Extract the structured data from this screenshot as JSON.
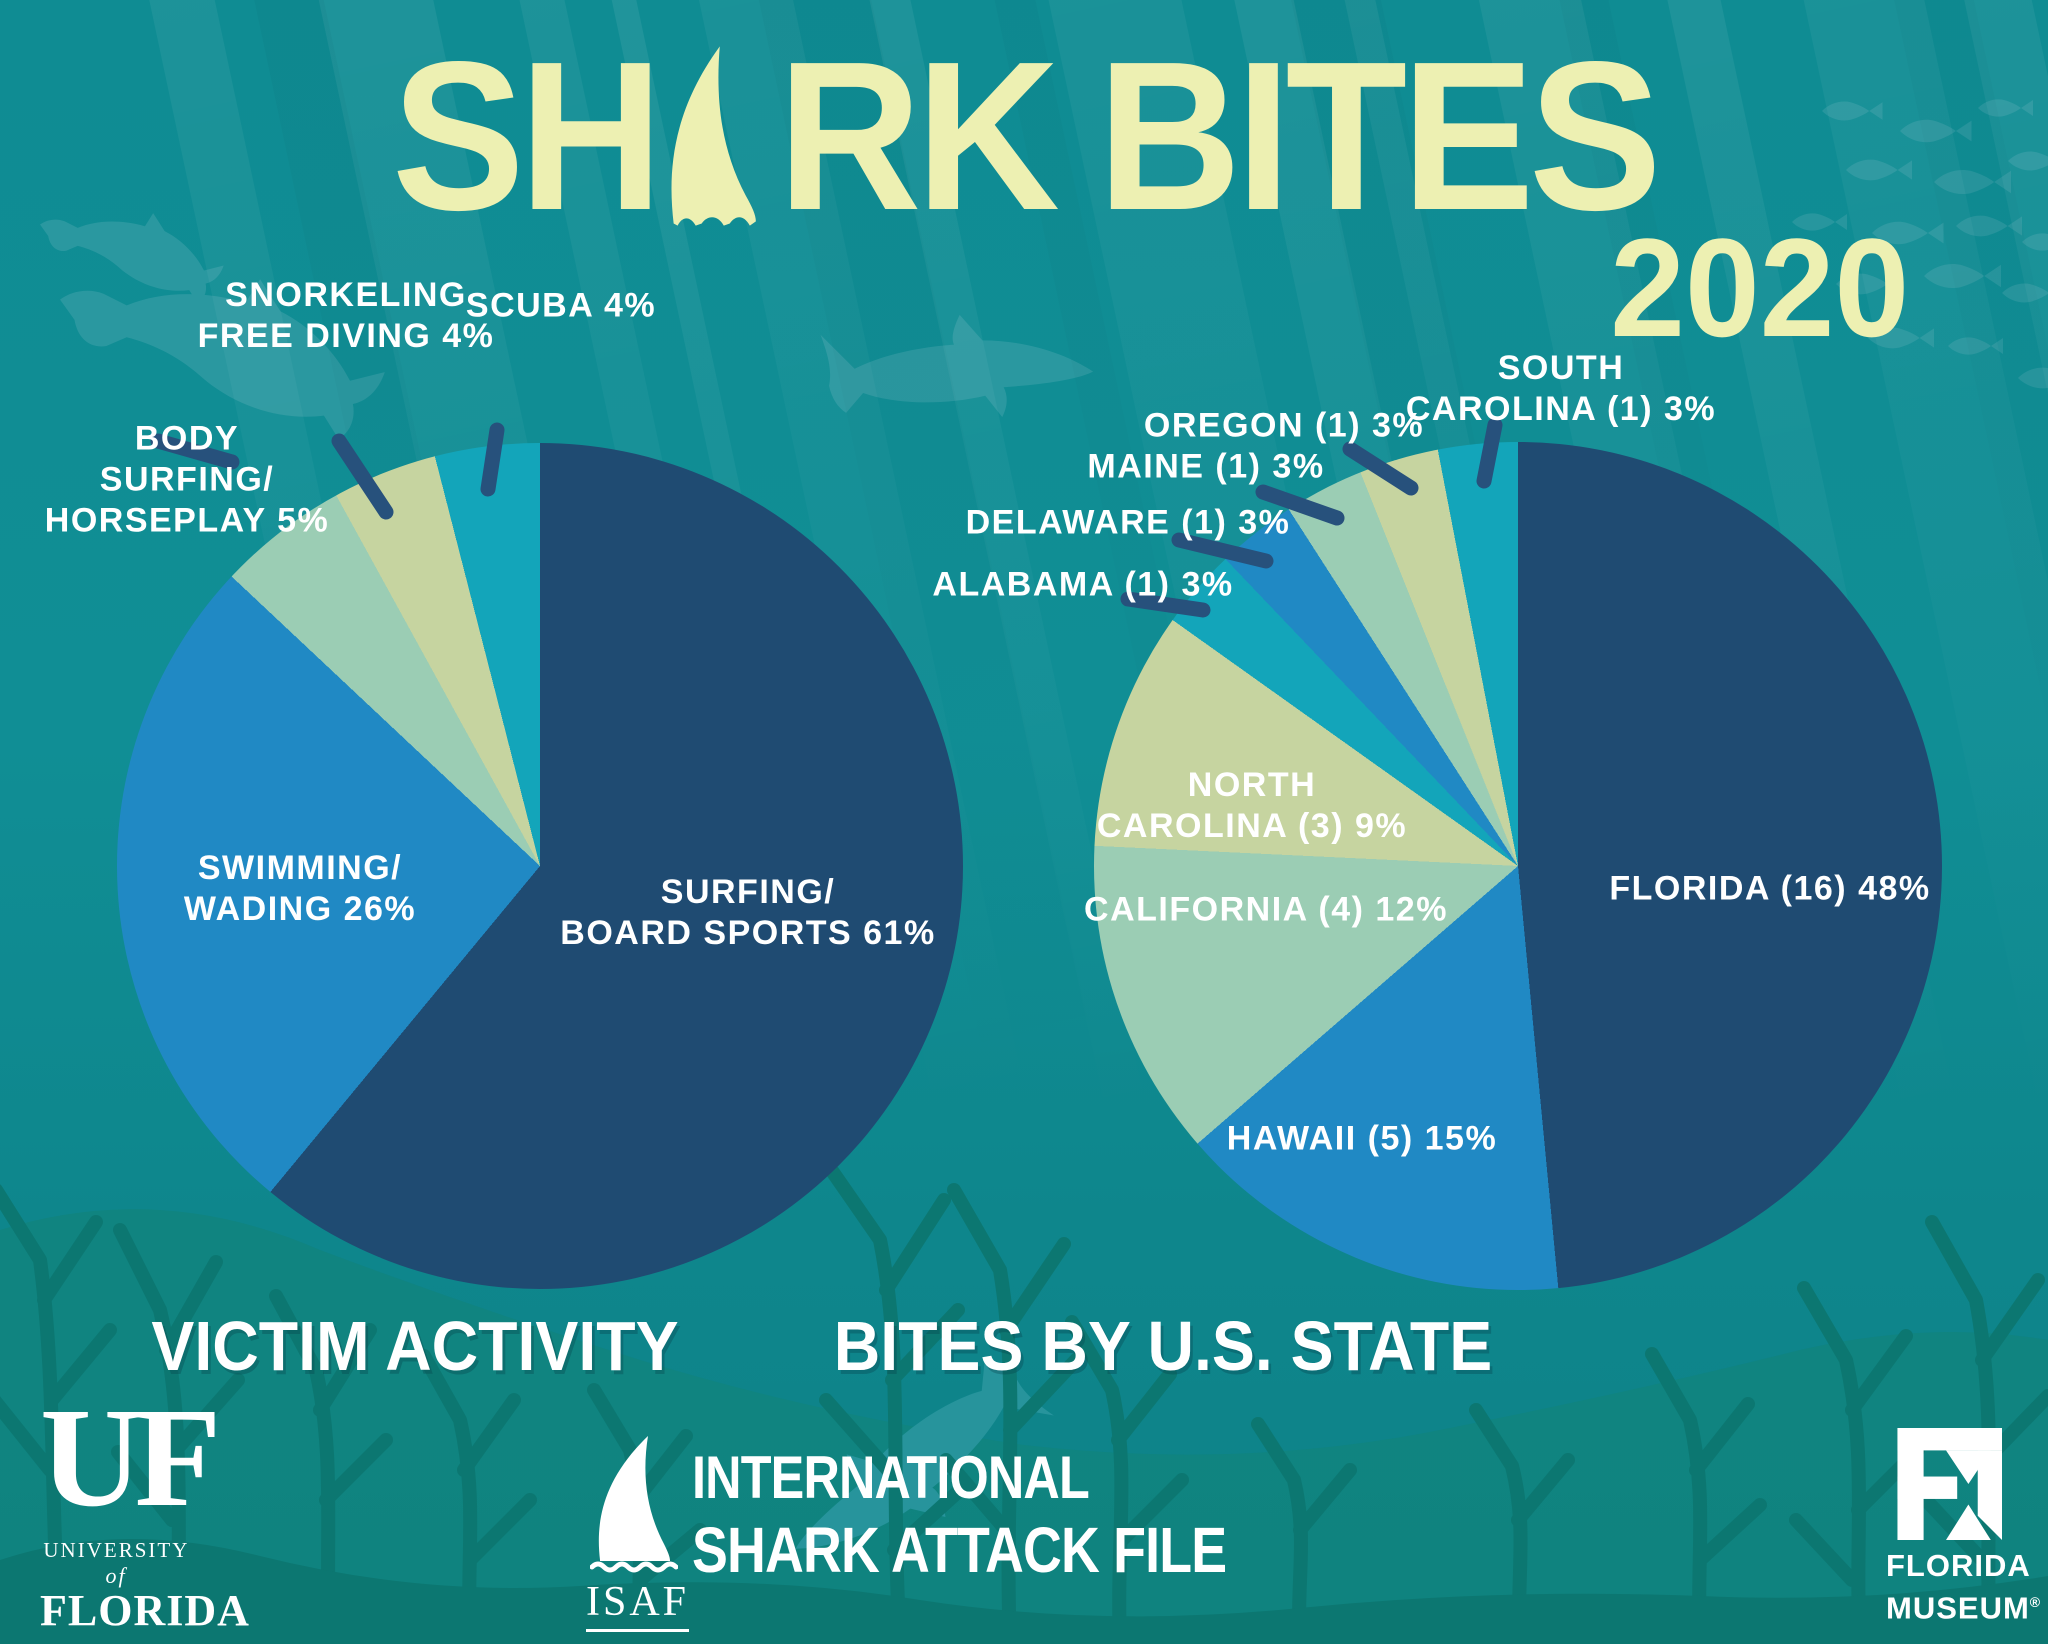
{
  "title": {
    "word1_prefix": "SH",
    "word1_suffix": "RK",
    "word2": "BITES",
    "year": "2020"
  },
  "colors": {
    "navy": "#1F4B72",
    "blue": "#2089C4",
    "mint": "#9BCDB4",
    "khaki": "#C6D4A0",
    "teal": "#13A5BA",
    "cream": "#EDF0B2",
    "leader_line": "#27517C",
    "background": "#0F8C93",
    "label_text": "#FFFFFF"
  },
  "chart_data": [
    {
      "type": "pie",
      "title": "VICTIM ACTIVITY",
      "legend_position": "on-slice",
      "slices": [
        {
          "name": "SURFING/BOARD SPORTS",
          "pct": 61,
          "color": "navy",
          "label_lines": [
            "SURFING/",
            "BOARD SPORTS 61%"
          ]
        },
        {
          "name": "SWIMMING/WADING",
          "pct": 26,
          "color": "blue",
          "label_lines": [
            "SWIMMING/",
            "WADING 26%"
          ]
        },
        {
          "name": "BODY SURFING/HORSEPLAY",
          "pct": 5,
          "color": "mint",
          "label_lines": [
            "BODY",
            "SURFING/",
            "HORSEPLAY 5%"
          ]
        },
        {
          "name": "SNORKELING/FREE DIVING",
          "pct": 4,
          "color": "khaki",
          "label_lines": [
            "SNORKELING",
            "FREE DIVING 4%"
          ]
        },
        {
          "name": "SCUBA",
          "pct": 4,
          "color": "teal",
          "label_lines": [
            "SCUBA 4%"
          ]
        }
      ]
    },
    {
      "type": "pie",
      "title": "BITES BY U.S. STATE",
      "legend_position": "on-slice",
      "slices": [
        {
          "name": "FLORIDA",
          "count": 16,
          "pct": 48,
          "color": "navy",
          "label_lines": [
            "FLORIDA (16) 48%"
          ]
        },
        {
          "name": "HAWAII",
          "count": 5,
          "pct": 15,
          "color": "blue",
          "label_lines": [
            "HAWAII (5) 15%"
          ]
        },
        {
          "name": "CALIFORNIA",
          "count": 4,
          "pct": 12,
          "color": "mint",
          "label_lines": [
            "CALIFORNIA (4) 12%"
          ]
        },
        {
          "name": "NORTH CAROLINA",
          "count": 3,
          "pct": 9,
          "color": "khaki",
          "label_lines": [
            "NORTH",
            "CAROLINA (3) 9%"
          ]
        },
        {
          "name": "ALABAMA",
          "count": 1,
          "pct": 3,
          "color": "teal",
          "label_lines": [
            "ALABAMA (1) 3%"
          ]
        },
        {
          "name": "DELAWARE",
          "count": 1,
          "pct": 3,
          "color": "blue",
          "label_lines": [
            "DELAWARE (1) 3%"
          ]
        },
        {
          "name": "MAINE",
          "count": 1,
          "pct": 3,
          "color": "mint",
          "label_lines": [
            "MAINE (1) 3%"
          ]
        },
        {
          "name": "OREGON",
          "count": 1,
          "pct": 3,
          "color": "khaki",
          "label_lines": [
            "OREGON (1) 3%"
          ]
        },
        {
          "name": "SOUTH CAROLINA",
          "count": 1,
          "pct": 3,
          "color": "teal",
          "label_lines": [
            "SOUTH",
            "CAROLINA (1) 3%"
          ]
        }
      ]
    }
  ],
  "footer": {
    "uf": {
      "monogram": "UF",
      "line1a": "UNIVERSITY",
      "line1b": "of",
      "line2": "FLORIDA"
    },
    "isaf": {
      "acronym": "ISAF",
      "name_line1": "INTERNATIONAL",
      "name_line2": "SHARK ATTACK FILE"
    },
    "fm": {
      "monogram": "FM",
      "line1": "FLORIDA",
      "line2": "MUSEUM",
      "registered": "®"
    }
  }
}
